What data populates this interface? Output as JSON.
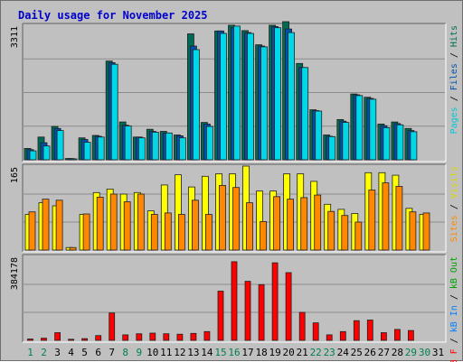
{
  "chart_data": {
    "type": "bar",
    "title": "Daily usage for November 2025",
    "categories": [
      "1",
      "2",
      "3",
      "4",
      "5",
      "6",
      "7",
      "8",
      "9",
      "10",
      "11",
      "12",
      "13",
      "14",
      "15",
      "16",
      "17",
      "18",
      "19",
      "20",
      "21",
      "22",
      "23",
      "24",
      "25",
      "26",
      "27",
      "28",
      "29",
      "30",
      "31"
    ],
    "weekend_days": [
      1,
      2,
      8,
      9,
      15,
      16,
      22,
      23,
      29,
      30
    ],
    "colors": {
      "hits": "#006b54",
      "files": "#0050b0",
      "pages": "#00d8e8",
      "visits": "#ffff00",
      "sites": "#ff8800",
      "kbin": "#0080ff",
      "kbout": "#00a000",
      "kbf": "#ff0000",
      "weekday_label": "#000000",
      "weekend_label": "#00804c",
      "title": "#0000cc"
    },
    "panels": [
      {
        "id": "hits-files-pages",
        "ymax": 3311,
        "ymax_label": "3311",
        "right_label": [
          {
            "text": "Pages",
            "color": "#00c8d8"
          },
          {
            "text": " / ",
            "color": "#000000"
          },
          {
            "text": "Files",
            "color": "#0050b0"
          },
          {
            "text": " / ",
            "color": "#000000"
          },
          {
            "text": "Hits",
            "color": "#006b54"
          }
        ],
        "series": [
          {
            "name": "Hits",
            "values": [
              280,
              560,
              820,
              30,
              540,
              600,
              2430,
              930,
              560,
              750,
              700,
              610,
              3100,
              920,
              3170,
              3310,
              3180,
              2830,
              3310,
              3400,
              2370,
              1230,
              610,
              990,
              1620,
              1540,
              880,
              930,
              770,
              0,
              0
            ]
          },
          {
            "name": "Files",
            "values": [
              250,
              420,
              770,
              30,
              500,
              580,
              2390,
              850,
              560,
              700,
              660,
              590,
              2800,
              880,
              3170,
              3250,
              3130,
              2800,
              3280,
              3220,
              2270,
              1210,
              580,
              950,
              1600,
              1510,
              840,
              890,
              720,
              0,
              0
            ]
          },
          {
            "name": "Pages",
            "values": [
              220,
              340,
              720,
              20,
              430,
              560,
              2350,
              830,
              540,
              680,
              660,
              540,
              2710,
              820,
              3110,
              3290,
              3110,
              2780,
              3250,
              3130,
              2270,
              1200,
              570,
              920,
              1580,
              1490,
              790,
              860,
              690,
              0,
              0
            ]
          }
        ]
      },
      {
        "id": "visits-sites",
        "ymax": 165,
        "ymax_label": "165",
        "right_label": [
          {
            "text": "Sites",
            "color": "#ff8800"
          },
          {
            "text": " / ",
            "color": "#000000"
          },
          {
            "text": "Visits",
            "color": "#d8d800"
          }
        ],
        "series": [
          {
            "name": "Visits",
            "values": [
              70,
              93,
              87,
              5,
              70,
              113,
              120,
              110,
              113,
              77,
              128,
              148,
              124,
              145,
              150,
              150,
              165,
              116,
              116,
              150,
              150,
              135,
              90,
              80,
              72,
              152,
              152,
              147,
              82,
              70,
              0
            ]
          },
          {
            "name": "Sites",
            "values": [
              75,
              100,
              98,
              5,
              71,
              104,
              110,
              95,
              110,
              70,
              73,
              70,
              98,
              70,
              127,
              123,
              93,
              56,
              105,
              100,
              103,
              108,
              76,
              68,
              55,
              118,
              132,
              125,
              75,
              73,
              0
            ]
          }
        ]
      },
      {
        "id": "kbf-kbin-kbout",
        "ymax": 384178,
        "ymax_label": "384178",
        "right_label": [
          {
            "text": "kB F",
            "color": "#ff0000"
          },
          {
            "text": " / ",
            "color": "#000000"
          },
          {
            "text": "kB In",
            "color": "#0080ff"
          },
          {
            "text": " / ",
            "color": "#000000"
          },
          {
            "text": "kB Out",
            "color": "#00a000"
          }
        ],
        "series": [
          {
            "name": "kB F",
            "values": [
              6000,
              10000,
              35000,
              5000,
              8000,
              22000,
              125000,
              25000,
              30000,
              33000,
              30000,
              28000,
              32000,
              40000,
              225000,
              360000,
              270000,
              255000,
              355000,
              310000,
              128000,
              80000,
              25000,
              40000,
              90000,
              93000,
              35000,
              50000,
              45000,
              0,
              0
            ]
          }
        ]
      }
    ]
  }
}
